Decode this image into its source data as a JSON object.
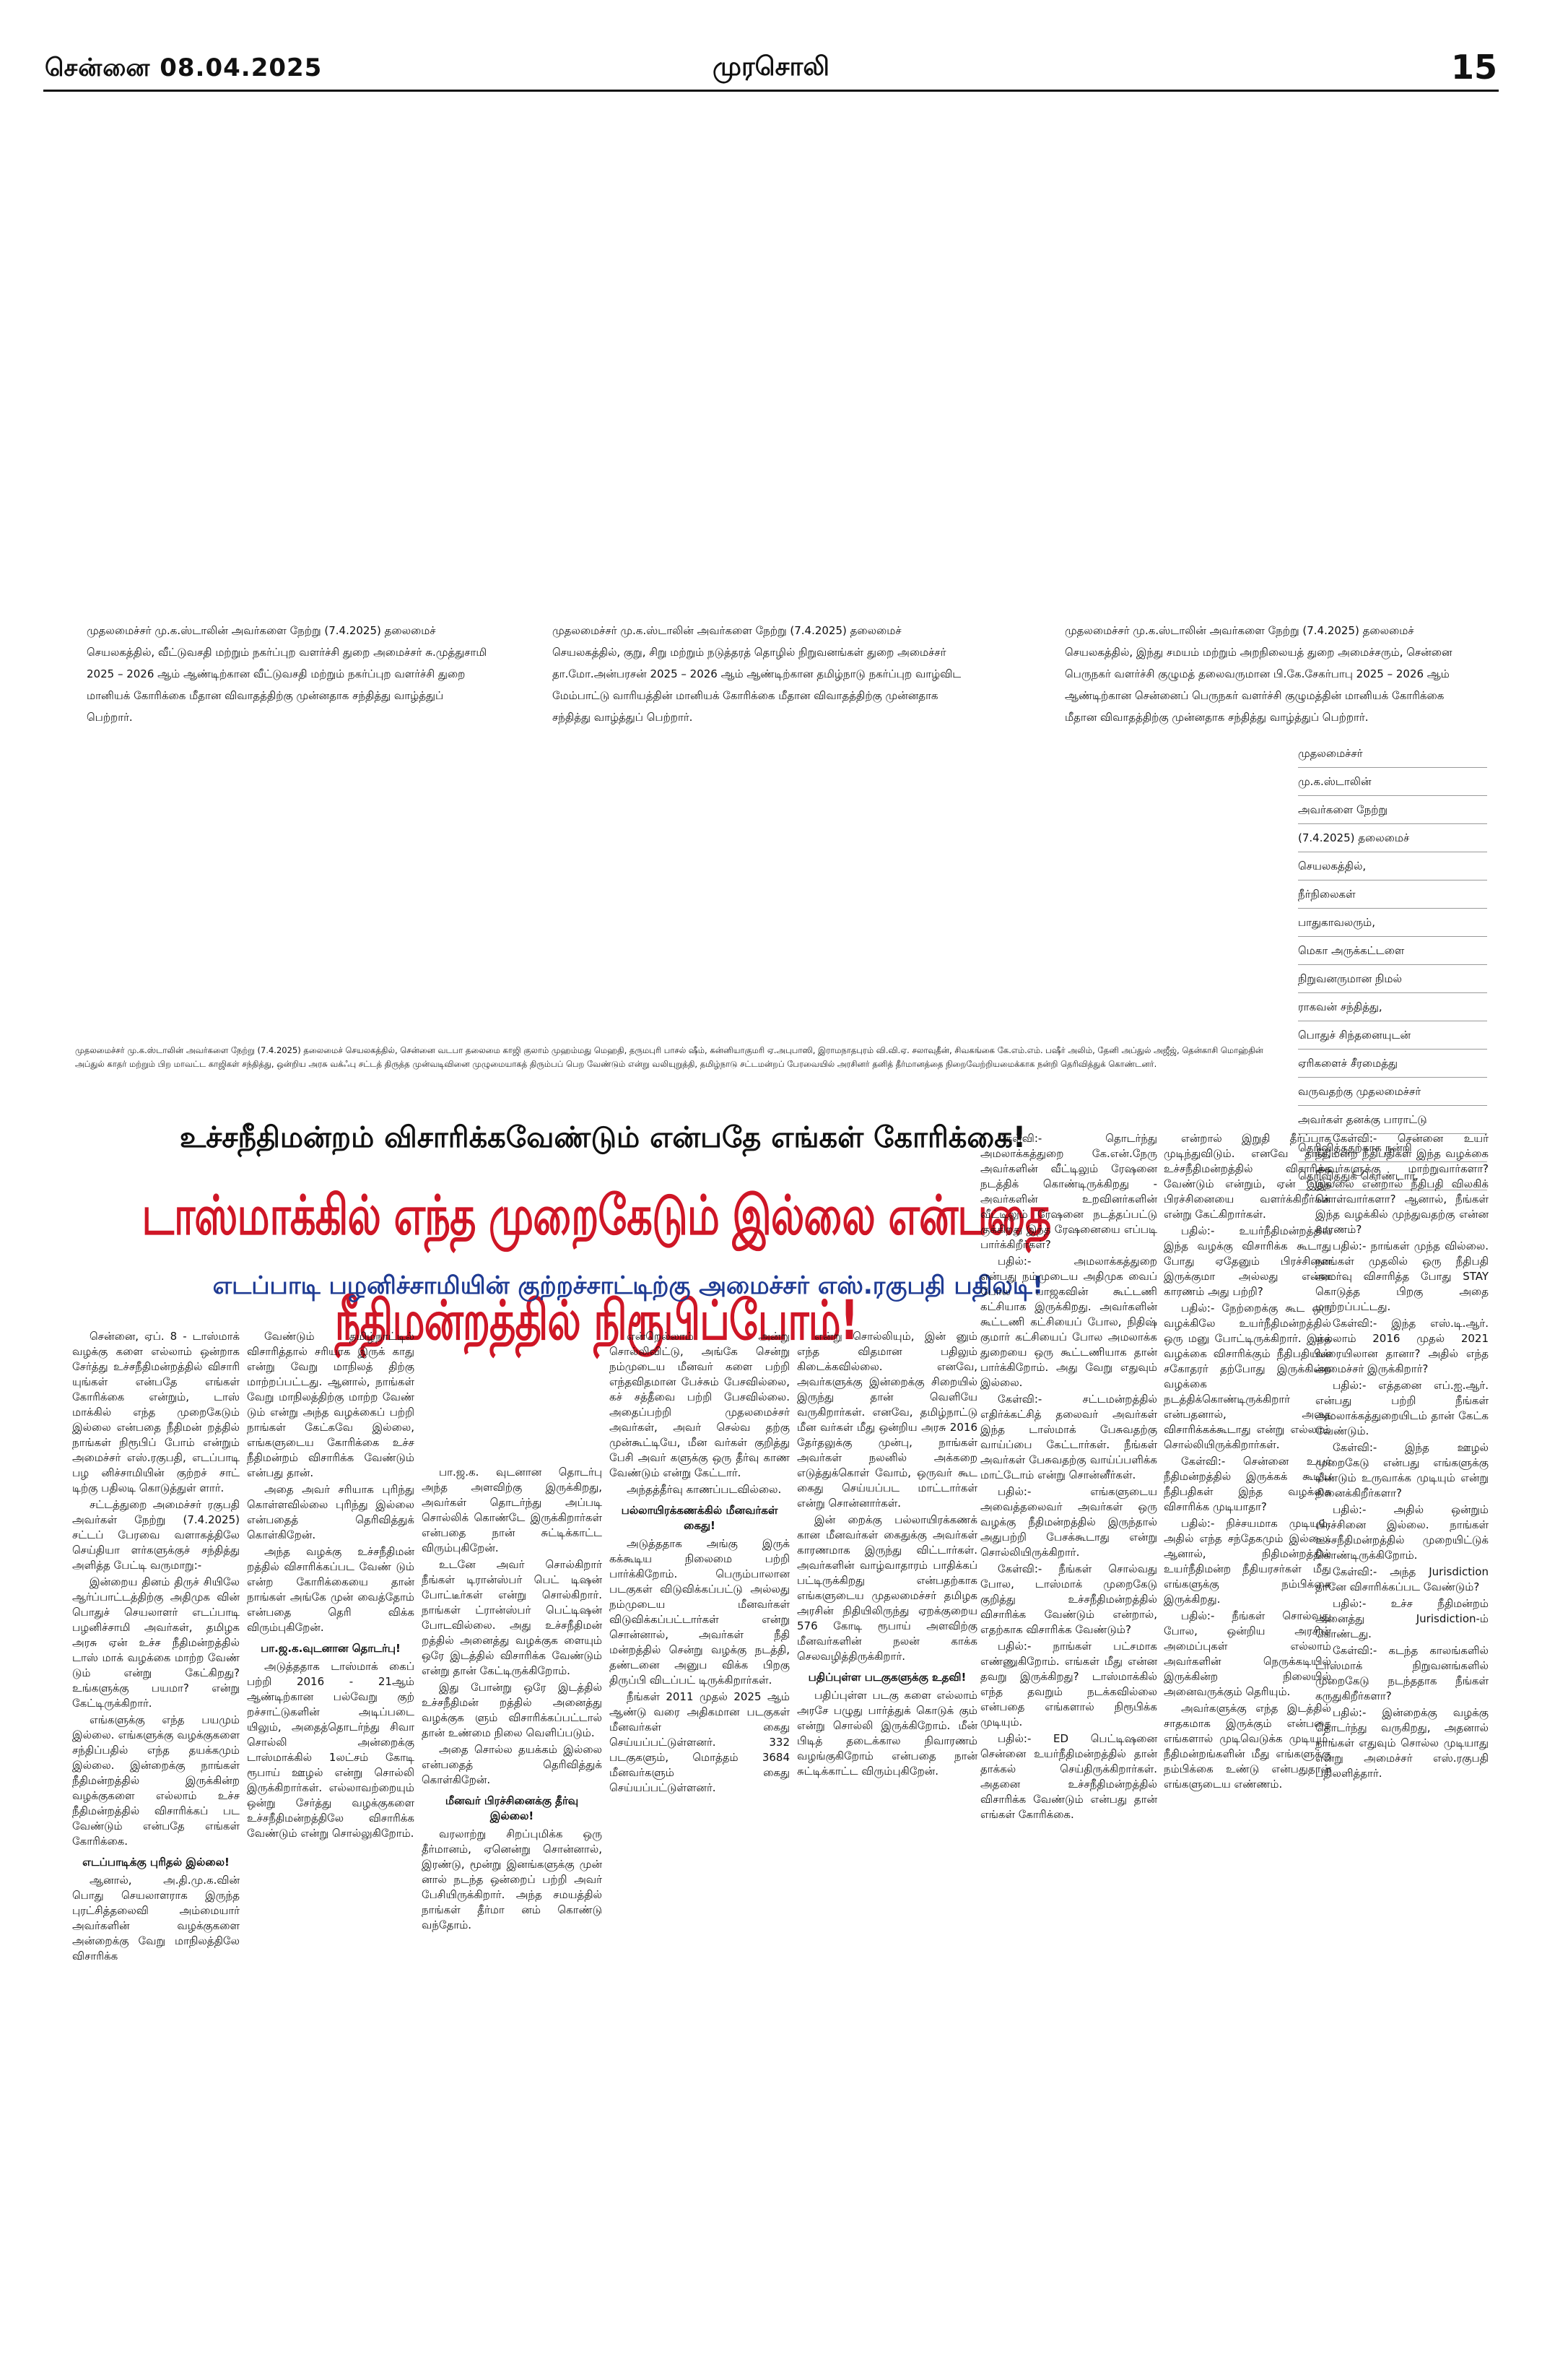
{
  "masthead": {
    "date": "சென்னை 08.04.2025",
    "name": "முரசொலி",
    "page": "15"
  },
  "captions": {
    "cap1": "முதலமைச்சர் மு.க.ஸ்டாலின் அவர்களை நேற்று (7.4.2025) தலைமைச் செயலகத்தில், வீட்டுவசதி மற்றும் நகர்ப்புற வளர்ச்சி துறை அமைச்சர் சு.முத்துசாமி 2025 – 2026 ஆம் ஆண்டிற்கான வீட்டுவசதி மற்றும் நகர்ப்புற வளர்ச்சி துறை மானியக் கோரிக்கை மீதான விவாதத்திற்கு முன்னதாக சந்தித்து வாழ்த்துப் பெற்றார்.",
    "cap2": "முதலமைச்சர் மு.க.ஸ்டாலின் அவர்களை நேற்று (7.4.2025) தலைமைச் செயலகத்தில், குறு, சிறு மற்றும் நடுத்தரத் தொழில் நிறுவனங்கள் துறை அமைச்சர் தா.மோ.அன்பரசன் 2025 – 2026 ஆம் ஆண்டிற்கான தமிழ்நாடு நகர்ப்புற வாழ்விட மேம்பாட்டு வாரியத்தின் மானியக் கோரிக்கை மீதான விவாதத்திற்கு முன்னதாக சந்தித்து வாழ்த்துப் பெற்றார்.",
    "cap3": "முதலமைச்சர் மு.க.ஸ்டாலின் அவர்களை நேற்று (7.4.2025) தலைமைச் செயலகத்தில், இந்து சமயம் மற்றும் அறநிலையத் துறை அமைச்சரும், சென்னை பெருநகர் வளர்ச்சி குழுமத் தலைவருமான பி.கே.சேகர்பாபு 2025 – 2026 ஆம் ஆண்டிற்கான சென்னைப் பெருநகர் வளர்ச்சி குழுமத்தின் மானியக் கோரிக்கை மீதான விவாதத்திற்கு முன்னதாக சந்தித்து வாழ்த்துப் பெற்றார்.",
    "side": [
      "முதலமைச்சர்",
      "மு.க.ஸ்டாலின்",
      "அவர்களை நேற்று",
      "(7.4.2025) தலைமைச்",
      "செயலகத்தில்,",
      "நீர்நிலைகள்",
      "பாதுகாவலரும்,",
      "மெகா அருக்கட்டளை",
      "நிறுவனருமான நிமல்",
      "ராகவன் சந்தித்து,",
      "பொதுச் சிந்தனையுடன்",
      "ஏரிகளைச் சீரமைத்து",
      "வருவதற்கு முதலமைச்சர்",
      "அவர்கள் தனக்கு பாராட்டு",
      "தெரிவித்ததற்காக நன்றி",
      "தெரிவித்துக் கொண்டார்."
    ],
    "bottom": "முதலமைச்சர் மு.க.ஸ்டாலின் அவர்களை நேற்று (7.4.2025) தலைமைச் செயலகத்தில், சென்னை வடபா தலைமை காஜி குலாம் முஹம்மது மெஹதி, தருமபுரி பாசல் ஷீம், கன்னியாகுமரி ஏ.அபுபாஸி, இராமநாதபுரம் வி.வி.ஏ. சலாவுதீன், சிவகங்கை கே.எம்.எம். பஷீர் அலிம், தேனி அப்துல் அஜீஜ், தென்காசி மொஹ்தின் அப்துல் காதர் மற்றும் பிற மாவட்ட காஜிகள் சந்தித்து, ஒன்றிய அரசு வக்ஃபு சட்டத் திருத்த முன்வடிவினை முழுமையாகத் திரும்பப் பெற வேண்டும் என்று வலியுறுத்தி, தமிழ்நாடு சட்டமன்றப் பேரவையில் அரசினர் தனித் தீர்மானத்தை நிறைவேற்றியமைக்காக நன்றி தெரிவித்துக் கொண்டனர்."
  },
  "headline": {
    "kicker": "உச்சநீதிமன்றம் விசாரிக்கவேண்டும் என்பதே எங்கள் கோரிக்கை!",
    "main": "டாஸ்மாக்கில் எந்த முறைகேடும் இல்லை என்பதை நீதிமன்றத்தில் நிரூபிப்போம்!",
    "sub": "எடப்பாடி பழனிச்சாமியின் குற்றச்சாட்டிற்கு அமைச்சர் எஸ்.ரகுபதி பதிலடி!"
  },
  "article": {
    "c1": [
      "சென்னை, ஏப். 8 - டாஸ்மாக் வழக்கு களை எல்லாம் ஒன்றாக சேர்த்து உச்சநீதிமன்றத்தில் விசாரி யுங்கள் என்பதே எங்கள் கோரிக்கை என்றும், டாஸ் மாக்கில் எந்த முறைகேடும் இல்லை என்பதை நீதிமன் றத்தில் நாங்கள் நிரூபிப் போம் என்றும் அமைச்சர் எஸ்.ரகுபதி, எடப்பாடி பழ னிச்சாமியின் குற்றச் சாட் டிற்கு பதிலடி கொடுத்துள் ளார்.",
      "சட்டத்துறை அமைச்சர் ரகுபதி அவர்கள் நேற்று (7.4.2025) சட்டப் பேரவை வளாகத்திலே செய்தியா ளர்களுக்குச் சந்தித்து அளித்த பேட்டி வருமாறு:-",
      "இன்றைய தினம் திருச் சியிலே ஆர்ப்பாட்டத்திற்கு அதிமுக வின் பொதுச் செயலாளர் எடப்பாடி பழனிச்சாமி அவர்கள், தமிழக அரசு ஏன் உச்ச நீதிமன்றத்தில் டாஸ் மாக் வழக்கை மாற்ற வேண் டும் என்று கேட்கிறது? உங்களுக்கு பயமா? என்று கேட்டிருக்கிறார்.",
      "எங்களுக்கு எந்த பயமும் இல்லை. எங்களுக்கு வழக்குகளை சந்திப்பதில் எந்த தயக்கமும் இல்லை. இன்றைக்கு நாங்கள் நீதிமன்றத்தில் இருக்கின்ற வழக்குகளை எல்லாம் உச்ச நீதிமன்றத்தில் விசாரிக்கப் பட வேண்டும் என்பதே எங்கள் கோரிக்கை."
    ],
    "c1h": "எடப்பாடிக்கு புரிதல் இல்லை!",
    "c1b": [
      "ஆனால், அ.தி.மு.க.வின் பொது செயலாளராக இருந்த புரட்சித்தலைவி அம்மையார் அவர்களின் வழக்குகளை அன்றைக்கு வேறு மாநிலத்திலே விசாரிக்க"
    ],
    "c2": [
      "வேண்டும் தமிழ்நாட்டில் விசாரித்தால் சரியாக இருக் காது என்று வேறு மாநிலத் திற்கு மாற்றப்பட்டது. ஆனால், நாங்கள் வேறு மாநிலத்திற்கு மாற்ற வேண் டும் என்று அந்த வழக்கைப் பற்றி நாங்கள் கேட்கவே இல்லை, எங்களுடைய கோரிக்கை உச்ச நீதிமன்றம் விசாரிக்க வேண்டும் என்பது தான்.",
      "அதை அவர் சரியாக புரிந்து கொள்ளவில்லை புரிந்து இல்லை என்பதைத் தெரிவித்துக் கொள்கிறேன்.",
      "அந்த வழக்கு உச்சநீதிமன் றத்தில் விசாரிக்கப்பட வேண் டும் என்ற கோரிக்கையை தான் நாங்கள் அங்கே முன் வைத்தோம் என்பதை தெரி விக்க விரும்புகிறேன்."
    ],
    "c2h": "பா.ஜ.க.வுடனான தொடர்பு!",
    "c2b": [
      "அடுத்ததாக டாஸ்மாக் கைப் பற்றி 2016 - 21ஆம் ஆண்டிற்கான பல்வேறு குற் றச்சாட்டுகளின் அடிப்படை யிலும், அதைத்தொடர்ந்து சிவா சொல்லி அன்றைக்கு டாஸ்மாக்கில் 1லட்சம் கோடி ரூபாய் ஊழல் என்று சொல்லி இருக்கிறார்கள். எல்லாவற்றையும் ஒன்று சேர்த்து வழக்குகளை உச்சநீதிமன்றத்திலே விசாரிக்க வேண்டும் என்று சொல்லுகிறோம்."
    ],
    "c3": [
      "பா.ஜ.க. வுடனான தொடர்பு அந்த அளவிற்கு இருக்கிறது, அவர்கள் தொடர்ந்து அப்படி சொல்லிக் கொண்டே இருக்கிறார்கள் என்பதை நான் சுட்டிக்காட்ட விரும்புகிறேன்.",
      "உடனே அவர் சொல்கிறார் நீங்கள் டிரான்ஸ்பர் பெட் டிஷன் போட்டீர்கள் என்று சொல்கிறார். நாங்கள் ட்ரான்ஸ்பர் பெட்டிஷன் போடவில்லை. அது உச்சநீதிமன் றத்தில் அனைத்து வழக்குக ளையும் ஒரே இடத்தில் விசாரிக்க வேண்டும் என்று தான் கேட்டிருக்கிறோம்.",
      "இது போன்று ஒரே இடத்தில் உச்சநீதிமன் றத்தில் அனைத்து வழக்குக ளும் விசாரிக்கப்பட்டால் தான் உண்மை நிலை வெளிப்படும்.",
      "அதை சொல்ல தயக்கம் இல்லை என்பதைத் தெரிவித்துக் கொள்கிறேன்."
    ],
    "c3h": "மீனவர் பிரச்சினைக்கு தீர்வு இல்லை!",
    "c3b": [
      "வரலாற்று சிறப்புமிக்க ஒரு தீர்மானம், ஏனென்று சொன்னால், இரண்டு, மூன்று இனங்களுக்கு முன் னால் நடந்த ஒன்றைப் பற்றி அவர் பேசியிருக்கிறார். அந்த சமயத்தில் நாங்கள் தீர்மா னம் கொண்டு வந்தோம்."
    ],
    "c4": [
      "என்றெல்லாம் அன்று சொல்லிவிட்டு, அங்கே சென்று நம்முடைய மீனவர் களை பற்றி எந்தவிதமான பேச்சும் பேசவில்லை, கச் சத்தீவை பற்றி பேசவில்லை. அதைப்பற்றி முதலமைச்சர் அவர்கள், அவர் செல்வ தற்கு முன்கூட்டியே, மீன வர்கள் குறித்து பேசி அவர் களுக்கு ஒரு தீர்வு காண வேண்டும் என்று கேட்டார்.",
      "அந்தத்தீர்வு காணப்படவில்லை."
    ],
    "c4h": "பல்லாயிரக்கணக்கில் மீனவர்கள் கைது!",
    "c4b": [
      "அடுத்ததாக அங்கு இருக் கக்கூடிய நிலைமை பற்றி பார்க்கிறோம். பெரும்பாலான படகுகள் விடுவிக்கப்பட்டு அல்லது நம்முடைய மீனவர்கள் விடுவிக்கப்பட்டார்கள் என்று சொன்னால், அவர்கள் நீதி மன்றத்தில் சென்று வழக்கு நடத்தி, தண்டனை அனுப விக்க பிறகு திருப்பி விடப்பட் டிருக்கிறார்கள்.",
      "நீங்கள் 2011 முதல் 2025 ஆம் ஆண்டு வரை அதிகமான படகுகள் மீனவர்கள் கைது செய்யப்பட்டுள்ளனர். 332 படகுகளும், மொத்தம் 3684 மீனவர்களும் கைது செய்யப்பட்டுள்ளனர்."
    ],
    "c5": [
      "என்று சொல்லியும், இன் னும் எந்த விதமான பதிலும் கிடைக்கவில்லை. எனவே, அவர்களுக்கு இன்றைக்கு சிறையில் இருந்து தான் வெளியே வருகிறார்கள். எனவே, தமிழ்நாட்டு மீன வர்கள் மீது ஒன்றிய அரசு 2016 தேர்தலுக்கு முன்பு, நாங்கள் அவர்கள் நலனில் அக்கறை எடுத்துக்கொள் வோம், ஒருவர் கூட கைது செய்யப்பட மாட்டார்கள் என்று சொன்னார்கள்.",
      "இன் றைக்கு பல்லாயிரக்கணக் கான மீனவர்கள் கைதுக்கு அவர்கள் காரணமாக இருந்து விட்டார்கள். அவர்களின் வாழ்வாதாரம் பாதிக்கப் பட்டிருக்கிறது என்பதற்காக எங்களுடைய முதலமைச்சர் தமிழக அரசின் நிதியிலிருந்து ஏறக்குறைய 576 கோடி ரூபாய் அளவிற்கு மீனவர்களின் நலன் காக்க செலவழித்திருக்கிறார்."
    ],
    "c5h": "பதிப்புள்ள படகுகளுக்கு உதவி!",
    "c5b": [
      "பதிப்புள்ள படகு களை எல்லாம் அரசே பழுது பார்த்துக் கொடுக் கும் என்று சொல்லி இருக்கிறோம். மீன் பிடித் தடைக்கால நிவாரணம் வழங்குகிறோம் என்பதை நான் சுட்டிக்காட்ட விரும்புகிறேன்."
    ],
    "c6": [
      "கேள்வி:- தொடர்ந்து அமலாக்கத்துறை கே.என்.நேரு அவர்களின் வீட்டிலும் ரேஷனை நடத்திக் கொண்டிருக்கிறது - அவர்களின் உறவினர்களின் வீட்டிலும் ரேஷனை நடத்தப்பட்டு குக்கிறது இந்த ரேஷனையை எப்படி பார்க்கிறீர்கள்?",
      "பதில்:- அமலாக்கத்துறை என்பது நம்முடைய அதிமுக வைப் போல பாஜகவின் கூட்டணி கட்சியாக இருக்கிறது. அவர்களின் கூட்டணி கட்சியைப் போல, நிதிஷ் குமார் கட்சியைப் போல அமலாக்க துறையை ஒரு கூட்டணியாக தான் பார்க்கிறோம். அது வேறு எதுவும் இல்லை.",
      "கேள்வி:- சட்டமன்றத்தில் எதிர்க்கட்சித் தலைவர் அவர்கள் இந்த டாஸ்மாக் பேசுவதற்கு வாய்ப்பை கேட்டார்கள். நீங்கள் அவர்கள் பேசுவதற்கு வாய்ப்பளிக்க மாட்டோம் என்று சொன்னீர்கள்.",
      "பதில்:- எங்களுடைய அவைத்தலைவர் அவர்கள் ஒரு வழக்கு நீதிமன்றத்தில் இருந்தால் அதுபற்றி பேசக்கூடாது என்று சொல்லியிருக்கிறார்.",
      "கேள்வி:- நீங்கள் சொல்வது போல, டாஸ்மாக் முறைகேடு குறித்து உச்சநீதிமன்றத்தில் விசாரிக்க வேண்டும் என்றால், எதற்காக விசாரிக்க வேண்டும்?",
      "பதில்:- நாங்கள் பட்சமாக எண்ணுகிறோம். எங்கள் மீது என்ன தவறு இருக்கிறது? டாஸ்மாக்கில் எந்த தவறும் நடக்கவில்லை என்பதை எங்களால் நிரூபிக்க முடியும்.",
      "பதில்:- ED பெட்டிஷனை சென்னை உயர்நீதிமன்றத்தில் தான் தாக்கல் செய்திருக்கிறார்கள். அதனை உச்சநீதிமன்றத்தில் விசாரிக்க வேண்டும் என்பது தான் எங்கள் கோரிக்கை."
    ],
    "c7": [
      "என்றால் இறுதி தீர்ப்பாக முடிந்துவிடும். எனவே தான், உச்சநீதிமன்றத்தில் விசாரிக்க வேண்டும் என்றும், ஏன் இந்த பிரச்சினையை வளர்க்கிறீர்கள் என்று கேட்கிறார்கள்.",
      "பதில்:- உயர்நீதிமன்றத்தில் இந்த வழக்கு விசாரிக்க கூடாது போது ஏதேனும் பிரச்சினை இருக்குமா அல்லது என்ன காரணம் அது பற்றி?",
      "பதில்:- நேற்றைக்கு கூட ஒரு வழக்கிலே உயர்நீதிமன்றத்தில் ஒரு மனு போட்டிருக்கிறார். இந்த வழக்கை விசாரிக்கும் நீதிபதியின் சகோதரர் தற்போது இருக்கின்ற வழக்கை நடத்திக்கொண்டிருக்கிறார் என்பதனால், அதை விசாரிக்கக்கூடாது என்று எல்லாம் சொல்லியிருக்கிறார்கள்.",
      "கேள்வி:- சென்னை உயர் நீதிமன்றத்தில் இருக்கக் கூடிய நீதிபதிகள் இந்த வழக்கை விசாரிக்க முடியாதா?",
      "பதில்:- நிச்சயமாக முடியும். அதில் எந்த சந்தேகமும் இல்லை. ஆனால், நிதிமன்றத்தில் உயர்நீதிமன்ற நீதியரசர்கள் மீது எங்களுக்கு நம்பிக்கை இருக்கிறது.",
      "பதில்:- நீங்கள் சொல்வது போல, ஒன்றிய அரசின் அமைப்புகள் எல்லாம் அவர்களின் நெருக்கடியில் இருக்கின்ற நிலையில் அனைவருக்கும் தெரியும்.",
      "அவர்களுக்கு எந்த இடத்தில் சாதகமாக இருக்கும் என்பதை எங்களால் முடிவெடுக்க முடியும். நீதிமன்றங்களின் மீது எங்களுக்கு நம்பிக்கை உண்டு என்பதுதான் எங்களுடைய எண்ணம்."
    ],
    "c8": [
      "கேள்வி:- சென்னை உயர் நீதிமன்ற நீதிபதிகள் இந்த வழக்கை அவர்களுக்கு மாற்றுவார்களா? இல்லை என்றால் நீதிபதி விலகிக் கொள்வார்களா? ஆனால், நீங்கள் இந்த வழக்கில் முந்துவதற்கு என்ன காரணம்?",
      "பதில்:- நாங்கள் முந்த வில்லை. நாங்கள் முதலில் ஒரு நீதிபதி அமர்வு விசாரித்த போது STAY கொடுத்த பிறகு அதை மாற்றப்பட்டது.",
      "கேள்வி:- இந்த எஸ்.டி.ஆர். எல்லாம் 2016 முதல் 2021 வரையிலான தானா? அதில் எந்த அமைச்சர் இருக்கிறார்?",
      "பதில்:- எத்தனை எப்.ஐ.ஆர். என்பது பற்றி நீங்கள் அமலாக்கத்துறையிடம் தான் கேட்க வேண்டும்.",
      "கேள்வி:- இந்த ஊழல் முறைகேடு என்பது எங்களுக்கு மீண்டும் உருவாக்க முடியும் என்று நினைக்கிறீர்களா?",
      "பதில்:- அதில் ஒன்றும் பிரச்சினை இல்லை. நாங்கள் உச்சநீதிமன்றத்தில் முறையிட்டுக் கொண்டிருக்கிறோம்.",
      "கேள்வி:- அந்த Jurisdiction தானே விசாரிக்கப்பட வேண்டும்?",
      "பதில்:- உச்ச நீதிமன்றம் அனைத்து Jurisdiction-ம் கொண்டது.",
      "கேள்வி:- கடந்த காலங்களில் டாஸ்மாக் நிறுவனங்களில் முறைகேடு நடந்ததாக நீங்கள் கருதுகிறீர்களா?",
      "பதில்:- இன்றைக்கு வழக்கு தொடர்ந்து வருகிறது, அதனால் நாங்கள் எதுவும் சொல்ல முடியாது என்று அமைச்சர் எஸ்.ரகுபதி பதிலளித்தார்."
    ]
  }
}
